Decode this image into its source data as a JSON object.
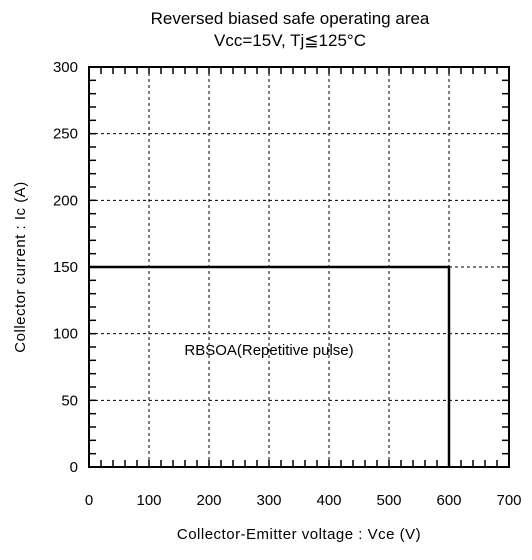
{
  "chart_data": {
    "type": "line",
    "title": "Reversed biased safe operating area",
    "subtitle": "Vcc=15V, Tj≦125°C",
    "xlabel": "Collector-Emitter voltage : Vce (V)",
    "ylabel": "Collector current : Ic (A)",
    "xlim": [
      0,
      700
    ],
    "ylim": [
      0,
      300
    ],
    "xticks": [
      0,
      100,
      200,
      300,
      400,
      500,
      600,
      700
    ],
    "yticks": [
      0,
      50,
      100,
      150,
      200,
      250,
      300
    ],
    "x_minor_step": 20,
    "y_minor_step": 10,
    "grid": true,
    "series": [
      {
        "x": [
          0,
          600,
          600
        ],
        "y": [
          150,
          150,
          0
        ]
      }
    ],
    "annotations": [
      {
        "text": "RBSOA(Repetitive pulse)",
        "x": 300,
        "y": 87
      }
    ]
  }
}
